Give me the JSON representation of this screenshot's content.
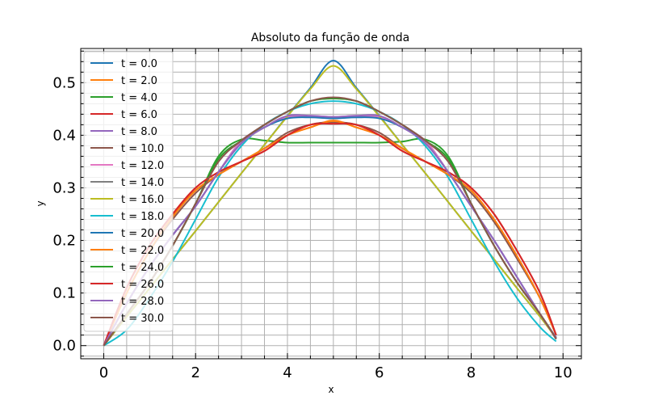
{
  "chart_data": {
    "type": "line",
    "title": "Absoluto da função de onda",
    "xlabel": "x",
    "ylabel": "y",
    "xlim": [
      -0.5,
      10.4
    ],
    "ylim": [
      -0.025,
      0.565
    ],
    "xticks": [
      0,
      2,
      4,
      6,
      8,
      10
    ],
    "yticks": [
      0.0,
      0.1,
      0.2,
      0.3,
      0.4,
      0.5
    ],
    "grid": true,
    "legend_position": "upper-left",
    "x": [
      0.0,
      0.5,
      1.0,
      1.5,
      2.0,
      2.5,
      3.0,
      3.5,
      4.0,
      4.5,
      5.0,
      5.5,
      6.0,
      6.5,
      7.0,
      7.5,
      8.0,
      8.5,
      9.0,
      9.5,
      9.85
    ],
    "series": [
      {
        "name": "t = 0.0",
        "color": "#1f77b4",
        "values": [
          0.0,
          0.055,
          0.109,
          0.164,
          0.218,
          0.273,
          0.328,
          0.382,
          0.437,
          0.49,
          0.542,
          0.49,
          0.437,
          0.382,
          0.328,
          0.273,
          0.218,
          0.164,
          0.109,
          0.055,
          0.016
        ]
      },
      {
        "name": "t = 2.0",
        "color": "#ff7f0e",
        "values": [
          0.0,
          0.1,
          0.18,
          0.245,
          0.295,
          0.325,
          0.35,
          0.375,
          0.4,
          0.415,
          0.428,
          0.415,
          0.4,
          0.375,
          0.35,
          0.325,
          0.295,
          0.24,
          0.17,
          0.09,
          0.02
        ]
      },
      {
        "name": "t = 4.0",
        "color": "#2ca02c",
        "values": [
          0.0,
          0.06,
          0.12,
          0.19,
          0.27,
          0.36,
          0.392,
          0.39,
          0.386,
          0.386,
          0.386,
          0.386,
          0.386,
          0.388,
          0.392,
          0.36,
          0.27,
          0.19,
          0.12,
          0.06,
          0.015
        ]
      },
      {
        "name": "t = 6.0",
        "color": "#d62728",
        "values": [
          0.0,
          0.11,
          0.19,
          0.25,
          0.3,
          0.33,
          0.35,
          0.37,
          0.4,
          0.42,
          0.425,
          0.42,
          0.4,
          0.37,
          0.35,
          0.33,
          0.3,
          0.25,
          0.18,
          0.1,
          0.02
        ]
      },
      {
        "name": "t = 8.0",
        "color": "#9467bd",
        "values": [
          0.0,
          0.08,
          0.15,
          0.21,
          0.265,
          0.33,
          0.39,
          0.415,
          0.435,
          0.435,
          0.432,
          0.435,
          0.435,
          0.415,
          0.39,
          0.33,
          0.265,
          0.2,
          0.13,
          0.06,
          0.015
        ]
      },
      {
        "name": "t = 10.0",
        "color": "#8c564b",
        "values": [
          0.0,
          0.1,
          0.18,
          0.24,
          0.29,
          0.325,
          0.35,
          0.375,
          0.405,
          0.42,
          0.425,
          0.42,
          0.405,
          0.375,
          0.35,
          0.325,
          0.29,
          0.235,
          0.165,
          0.09,
          0.02
        ]
      },
      {
        "name": "t = 12.0",
        "color": "#e377c2",
        "values": [
          0.0,
          0.08,
          0.15,
          0.21,
          0.265,
          0.33,
          0.39,
          0.415,
          0.435,
          0.437,
          0.435,
          0.437,
          0.435,
          0.415,
          0.39,
          0.33,
          0.265,
          0.2,
          0.13,
          0.06,
          0.015
        ]
      },
      {
        "name": "t = 14.0",
        "color": "#7f7f7f",
        "values": [
          0.0,
          0.06,
          0.12,
          0.19,
          0.27,
          0.35,
          0.39,
          0.42,
          0.445,
          0.465,
          0.47,
          0.465,
          0.445,
          0.42,
          0.39,
          0.35,
          0.27,
          0.19,
          0.12,
          0.06,
          0.012
        ]
      },
      {
        "name": "t = 16.0",
        "color": "#bcbd22",
        "values": [
          0.0,
          0.055,
          0.109,
          0.164,
          0.218,
          0.273,
          0.328,
          0.382,
          0.436,
          0.488,
          0.532,
          0.488,
          0.436,
          0.382,
          0.328,
          0.273,
          0.218,
          0.164,
          0.109,
          0.055,
          0.014
        ]
      },
      {
        "name": "t = 18.0",
        "color": "#17becf",
        "values": [
          0.0,
          0.03,
          0.09,
          0.16,
          0.24,
          0.32,
          0.38,
          0.42,
          0.445,
          0.46,
          0.465,
          0.46,
          0.445,
          0.42,
          0.38,
          0.32,
          0.24,
          0.16,
          0.09,
          0.035,
          0.008
        ]
      },
      {
        "name": "t = 20.0",
        "color": "#1f77b4",
        "values": [
          0.0,
          0.08,
          0.15,
          0.21,
          0.265,
          0.33,
          0.385,
          0.415,
          0.432,
          0.434,
          0.432,
          0.434,
          0.432,
          0.415,
          0.385,
          0.33,
          0.265,
          0.2,
          0.13,
          0.06,
          0.015
        ]
      },
      {
        "name": "t = 22.0",
        "color": "#ff7f0e",
        "values": [
          0.0,
          0.1,
          0.18,
          0.245,
          0.295,
          0.325,
          0.35,
          0.375,
          0.4,
          0.415,
          0.427,
          0.415,
          0.4,
          0.375,
          0.35,
          0.325,
          0.295,
          0.24,
          0.17,
          0.09,
          0.02
        ]
      },
      {
        "name": "t = 24.0",
        "color": "#2ca02c",
        "values": [
          0.0,
          0.06,
          0.12,
          0.19,
          0.27,
          0.355,
          0.39,
          0.42,
          0.445,
          0.465,
          0.47,
          0.465,
          0.445,
          0.42,
          0.39,
          0.355,
          0.27,
          0.19,
          0.12,
          0.06,
          0.014
        ]
      },
      {
        "name": "t = 26.0",
        "color": "#d62728",
        "values": [
          0.0,
          0.11,
          0.19,
          0.25,
          0.3,
          0.33,
          0.35,
          0.37,
          0.4,
          0.42,
          0.422,
          0.42,
          0.4,
          0.37,
          0.35,
          0.33,
          0.3,
          0.25,
          0.18,
          0.1,
          0.02
        ]
      },
      {
        "name": "t = 28.0",
        "color": "#9467bd",
        "values": [
          0.0,
          0.08,
          0.15,
          0.21,
          0.265,
          0.33,
          0.385,
          0.415,
          0.437,
          0.437,
          0.435,
          0.437,
          0.437,
          0.415,
          0.385,
          0.33,
          0.265,
          0.2,
          0.13,
          0.06,
          0.015
        ]
      },
      {
        "name": "t = 30.0",
        "color": "#8c564b",
        "values": [
          0.0,
          0.06,
          0.12,
          0.19,
          0.27,
          0.35,
          0.39,
          0.42,
          0.445,
          0.465,
          0.472,
          0.465,
          0.445,
          0.42,
          0.39,
          0.35,
          0.27,
          0.19,
          0.12,
          0.06,
          0.013
        ]
      }
    ]
  }
}
